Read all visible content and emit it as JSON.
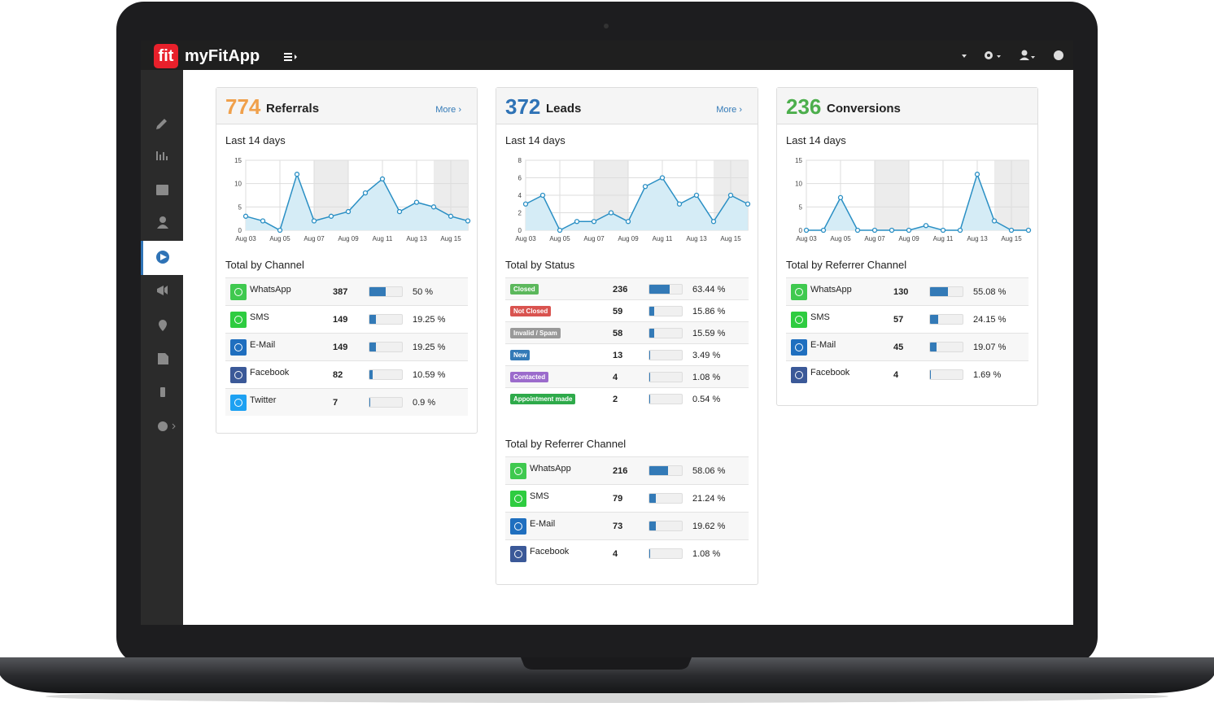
{
  "app": {
    "logo": "fit",
    "name": "myFitApp"
  },
  "panels": [
    {
      "count": 774,
      "title": "Referrals",
      "more": "More ›",
      "color": "#f0a04b",
      "chart": {
        "type": "area",
        "title": "Last 14 days",
        "color": "#2a8fc4",
        "categories": [
          "Aug 03",
          null,
          "Aug 05",
          null,
          "Aug 07",
          null,
          "Aug 09",
          null,
          "Aug 11",
          null,
          "Aug 13",
          null,
          "Aug 15",
          null
        ],
        "values": [
          3,
          2,
          0,
          12,
          2,
          3,
          4,
          8,
          11,
          4,
          6,
          5,
          3,
          2
        ],
        "ylim": [
          0,
          15
        ],
        "yticks": [
          0,
          5,
          10,
          15
        ],
        "grid": true
      },
      "sections": [
        {
          "title": "Total by Channel",
          "rows": [
            {
              "name": "WhatsApp",
              "icon_color": "#3fc94f",
              "count": 387,
              "share": {
                "value": 50,
                "label": "50 %"
              }
            },
            {
              "name": "SMS",
              "icon_color": "#2ecc40",
              "count": 149,
              "share": {
                "value": 19.25,
                "label": "19.25 %"
              }
            },
            {
              "name": "E-Mail",
              "icon_color": "#1f6fbf",
              "count": 149,
              "share": {
                "value": 19.25,
                "label": "19.25 %"
              }
            },
            {
              "name": "Facebook",
              "icon_color": "#3b5998",
              "count": 82,
              "share": {
                "value": 10.59,
                "label": "10.59 %"
              }
            },
            {
              "name": "Twitter",
              "icon_color": "#1da1f2",
              "count": 7,
              "share": {
                "value": 0.9,
                "label": "0.9 %"
              }
            }
          ]
        }
      ]
    },
    {
      "count": 372,
      "title": "Leads",
      "more": "More ›",
      "color": "#2f73b6",
      "chart": {
        "type": "area",
        "title": "Last 14 days",
        "color": "#2a8fc4",
        "categories": [
          "Aug 03",
          null,
          "Aug 05",
          null,
          "Aug 07",
          null,
          "Aug 09",
          null,
          "Aug 11",
          null,
          "Aug 13",
          null,
          "Aug 15",
          null
        ],
        "values": [
          3,
          4,
          0,
          1,
          1,
          2,
          1,
          5,
          6,
          3,
          4,
          1,
          4,
          3
        ],
        "ylim": [
          0,
          8
        ],
        "yticks": [
          0,
          2,
          4,
          6,
          8
        ],
        "grid": true
      },
      "sections": [
        {
          "title": "Total by Status",
          "badges": true,
          "rows": [
            {
              "name": "Closed",
              "badge_color": "#5cb85c",
              "count": 236,
              "share": {
                "value": 63.44,
                "label": "63.44 %"
              }
            },
            {
              "name": "Not Closed",
              "badge_color": "#d9534f",
              "count": 59,
              "share": {
                "value": 15.86,
                "label": "15.86 %"
              }
            },
            {
              "name": "Invalid / Spam",
              "badge_color": "#999999",
              "count": 58,
              "share": {
                "value": 15.59,
                "label": "15.59 %"
              }
            },
            {
              "name": "New",
              "badge_color": "#337ab7",
              "count": 13,
              "share": {
                "value": 3.49,
                "label": "3.49 %"
              }
            },
            {
              "name": "Contacted",
              "badge_color": "#9b6bcc",
              "count": 4,
              "share": {
                "value": 1.08,
                "label": "1.08 %"
              }
            },
            {
              "name": "Appointment made",
              "badge_color": "#2eaa4a",
              "count": 2,
              "share": {
                "value": 0.54,
                "label": "0.54 %"
              }
            }
          ]
        },
        {
          "title": "Total by Referrer Channel",
          "rows": [
            {
              "name": "WhatsApp",
              "icon_color": "#3fc94f",
              "count": 216,
              "share": {
                "value": 58.06,
                "label": "58.06 %"
              }
            },
            {
              "name": "SMS",
              "icon_color": "#2ecc40",
              "count": 79,
              "share": {
                "value": 21.24,
                "label": "21.24 %"
              }
            },
            {
              "name": "E-Mail",
              "icon_color": "#1f6fbf",
              "count": 73,
              "share": {
                "value": 19.62,
                "label": "19.62 %"
              }
            },
            {
              "name": "Facebook",
              "icon_color": "#3b5998",
              "count": 4,
              "share": {
                "value": 1.08,
                "label": "1.08 %"
              }
            }
          ]
        }
      ]
    },
    {
      "count": 236,
      "title": "Conversions",
      "color": "#4cae4c",
      "chart": {
        "type": "area",
        "title": "Last 14 days",
        "color": "#2a8fc4",
        "categories": [
          "Aug 03",
          null,
          "Aug 05",
          null,
          "Aug 07",
          null,
          "Aug 09",
          null,
          "Aug 11",
          null,
          "Aug 13",
          null,
          "Aug 15",
          null
        ],
        "values": [
          0,
          0,
          7,
          0,
          0,
          0,
          0,
          1,
          0,
          0,
          12,
          2,
          0,
          0
        ],
        "ylim": [
          0,
          15
        ],
        "yticks": [
          0,
          5,
          10,
          15
        ],
        "grid": true
      },
      "sections": [
        {
          "title": "Total by Referrer Channel",
          "rows": [
            {
              "name": "WhatsApp",
              "icon_color": "#3fc94f",
              "count": 130,
              "share": {
                "value": 55.08,
                "label": "55.08 %"
              }
            },
            {
              "name": "SMS",
              "icon_color": "#2ecc40",
              "count": 57,
              "share": {
                "value": 24.15,
                "label": "24.15 %"
              }
            },
            {
              "name": "E-Mail",
              "icon_color": "#1f6fbf",
              "count": 45,
              "share": {
                "value": 19.07,
                "label": "19.07 %"
              }
            },
            {
              "name": "Facebook",
              "icon_color": "#3b5998",
              "count": 4,
              "share": {
                "value": 1.69,
                "label": "1.69 %"
              }
            }
          ]
        }
      ]
    }
  ]
}
